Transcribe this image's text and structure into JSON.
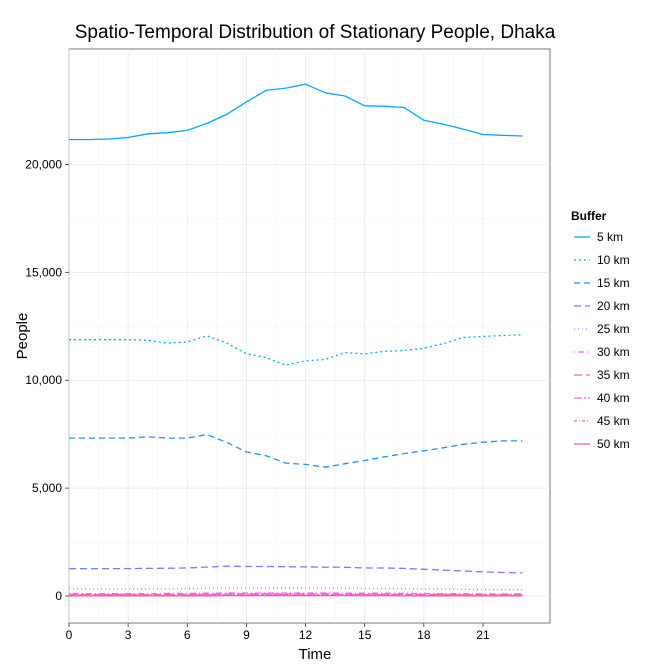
{
  "chart_data": {
    "type": "line",
    "title": "Spatio-Temporal Distribution of Stationary People, Dhaka",
    "xlabel": "Time",
    "ylabel": "People",
    "x": [
      0,
      1,
      2,
      3,
      4,
      5,
      6,
      7,
      8,
      9,
      10,
      11,
      12,
      13,
      14,
      15,
      16,
      17,
      18,
      19,
      20,
      21,
      22,
      23
    ],
    "xticks": [
      0,
      3,
      6,
      9,
      12,
      15,
      18,
      21
    ],
    "xtick_labels": [
      "0",
      "3",
      "6",
      "9",
      "12",
      "15",
      "18",
      "21"
    ],
    "xlim": [
      0,
      24.4
    ],
    "yticks": [
      0,
      5000,
      10000,
      15000,
      20000
    ],
    "ytick_labels": [
      "0",
      "5,000",
      "10,000",
      "15,000",
      "20,000"
    ],
    "ylim": [
      -1250,
      25350
    ],
    "grid": true,
    "legend": {
      "title": "Buffer",
      "position": "right"
    },
    "series": [
      {
        "name": "5 km",
        "color": "#00a9ff",
        "dash": "",
        "values": [
          21150,
          21150,
          21180,
          21250,
          21420,
          21470,
          21580,
          21900,
          22320,
          22900,
          23430,
          23540,
          23720,
          23320,
          23170,
          22720,
          22700,
          22640,
          22050,
          21860,
          21640,
          21390,
          21350,
          21320
        ]
      },
      {
        "name": "10 km",
        "color": "#00a9ff",
        "dash": "2,3",
        "values": [
          11880,
          11880,
          11880,
          11880,
          11850,
          11720,
          11770,
          12060,
          11720,
          11230,
          11050,
          10700,
          10900,
          10960,
          11280,
          11220,
          11340,
          11380,
          11480,
          11700,
          11980,
          12030,
          12070,
          12110
        ]
      },
      {
        "name": "15 km",
        "color": "#1e90ff",
        "dash": "6,4",
        "values": [
          7320,
          7320,
          7320,
          7320,
          7380,
          7320,
          7320,
          7480,
          7120,
          6680,
          6500,
          6160,
          6100,
          5970,
          6130,
          6280,
          6450,
          6600,
          6730,
          6870,
          7030,
          7130,
          7190,
          7190
        ]
      },
      {
        "name": "20 km",
        "color": "#6f7fff",
        "dash": "7,4",
        "values": [
          1270,
          1260,
          1270,
          1270,
          1280,
          1290,
          1300,
          1340,
          1380,
          1370,
          1370,
          1360,
          1350,
          1340,
          1330,
          1300,
          1300,
          1280,
          1240,
          1200,
          1160,
          1120,
          1090,
          1070
        ]
      },
      {
        "name": "25 km",
        "color": "#c77cff",
        "dash": "1,3",
        "values": [
          330,
          320,
          320,
          320,
          330,
          330,
          340,
          360,
          370,
          370,
          380,
          380,
          380,
          370,
          360,
          350,
          340,
          340,
          330,
          320,
          310,
          300,
          300,
          300
        ]
      },
      {
        "name": "30 km",
        "color": "#e764ff",
        "dash": "1,3,6,3",
        "values": [
          120,
          110,
          110,
          110,
          110,
          120,
          120,
          130,
          140,
          140,
          140,
          140,
          140,
          140,
          130,
          130,
          130,
          120,
          120,
          110,
          110,
          100,
          100,
          100
        ]
      },
      {
        "name": "35 km",
        "color": "#ff61c3",
        "dash": "8,4",
        "values": [
          80,
          70,
          70,
          70,
          70,
          80,
          80,
          90,
          100,
          100,
          100,
          100,
          100,
          100,
          90,
          90,
          90,
          80,
          80,
          70,
          70,
          70,
          70,
          70
        ]
      },
      {
        "name": "40 km",
        "color": "#f564e3",
        "dash": "8,2,2,2",
        "values": [
          50,
          50,
          50,
          50,
          50,
          50,
          50,
          60,
          70,
          70,
          70,
          70,
          70,
          70,
          60,
          60,
          60,
          60,
          50,
          50,
          50,
          50,
          50,
          50
        ]
      },
      {
        "name": "45 km",
        "color": "#ff5fa8",
        "dash": "3,2,1,2",
        "values": [
          30,
          30,
          30,
          30,
          30,
          30,
          30,
          40,
          40,
          40,
          40,
          40,
          40,
          40,
          40,
          40,
          40,
          30,
          30,
          30,
          30,
          30,
          30,
          30
        ]
      },
      {
        "name": "50 km",
        "color": "#ff5f90",
        "dash": "",
        "values": [
          10,
          10,
          10,
          10,
          10,
          10,
          10,
          10,
          20,
          20,
          20,
          20,
          20,
          20,
          20,
          20,
          20,
          10,
          10,
          10,
          10,
          10,
          10,
          10
        ]
      }
    ]
  }
}
